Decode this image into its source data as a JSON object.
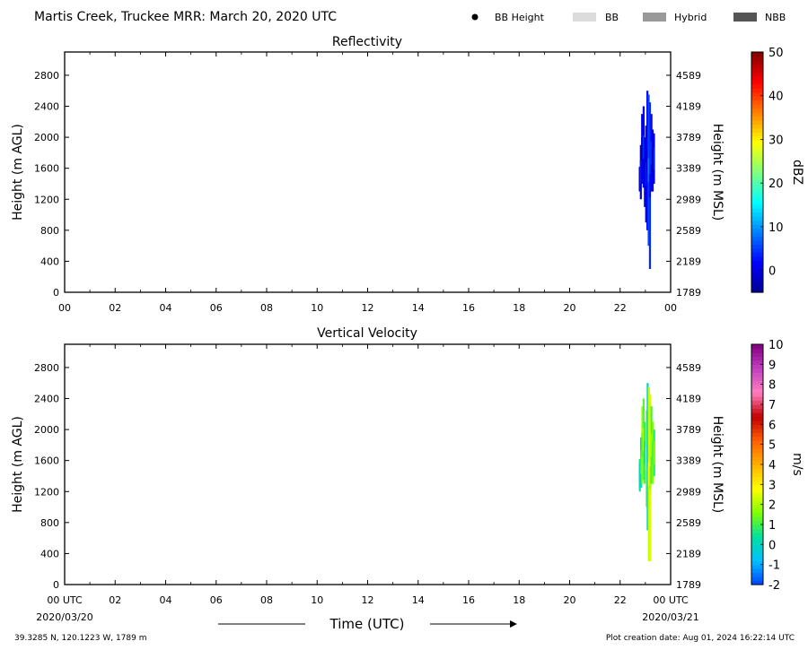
{
  "header": {
    "title": "Martis Creek, Truckee MRR:  March 20, 2020 UTC",
    "legend": [
      {
        "label": "BB Height",
        "color": "#000000",
        "marker": "dot"
      },
      {
        "label": "BB",
        "color": "#dcdcdc",
        "marker": "box"
      },
      {
        "label": "Hybrid",
        "color": "#999999",
        "marker": "box"
      },
      {
        "label": "NBB",
        "color": "#555555",
        "marker": "box"
      }
    ]
  },
  "chart_data": [
    {
      "type": "heatmap",
      "title": "Reflectivity",
      "xlabel": "",
      "ylabel": "Height (m AGL)",
      "y2label": "Height (m MSL)",
      "x_ticks": [
        "00",
        "02",
        "04",
        "06",
        "08",
        "10",
        "12",
        "14",
        "16",
        "18",
        "20",
        "22",
        "00"
      ],
      "xlim_hours": [
        0,
        24
      ],
      "ylim": [
        0,
        3100
      ],
      "y_ticks": [
        0,
        400,
        800,
        1200,
        1600,
        2000,
        2400,
        2800
      ],
      "y2_ticks": [
        1789,
        2189,
        2589,
        2989,
        3389,
        3789,
        4189,
        4589
      ],
      "colorbar": {
        "label": "dBZ",
        "range": [
          -5,
          50
        ],
        "ticks": [
          0,
          10,
          20,
          30,
          40,
          50
        ],
        "colors": [
          "#00008f",
          "#0000ff",
          "#0080ff",
          "#00ffff",
          "#80ff80",
          "#ffff00",
          "#ff8000",
          "#ff0000",
          "#800000"
        ]
      },
      "data": {
        "x_start_hour": 22.75,
        "x_end_hour": 23.45,
        "columns": [
          {
            "h": 22.78,
            "bot": 1300,
            "top": 1620,
            "v": 0
          },
          {
            "h": 22.82,
            "bot": 1200,
            "top": 1900,
            "v": 0
          },
          {
            "h": 22.87,
            "bot": 1400,
            "top": 2300,
            "v": 0
          },
          {
            "h": 22.93,
            "bot": 1350,
            "top": 2400,
            "v": 1
          },
          {
            "h": 22.98,
            "bot": 1100,
            "top": 2000,
            "v": 0
          },
          {
            "h": 23.03,
            "bot": 900,
            "top": 2150,
            "v": 0
          },
          {
            "h": 23.08,
            "bot": 800,
            "top": 2600,
            "v": 2
          },
          {
            "h": 23.13,
            "bot": 600,
            "top": 2550,
            "v": 6
          },
          {
            "h": 23.18,
            "bot": 300,
            "top": 2450,
            "v": 4
          },
          {
            "h": 23.24,
            "bot": 1300,
            "top": 2300,
            "v": 1
          },
          {
            "h": 23.29,
            "bot": 1300,
            "top": 2100,
            "v": 0
          },
          {
            "h": 23.34,
            "bot": 1400,
            "top": 2050,
            "v": 0
          }
        ]
      }
    },
    {
      "type": "heatmap",
      "title": "Vertical Velocity",
      "xlabel": "Time (UTC)",
      "ylabel": "Height (m AGL)",
      "y2label": "Height (m MSL)",
      "x_ticks": [
        "00 UTC",
        "02",
        "04",
        "06",
        "08",
        "10",
        "12",
        "14",
        "16",
        "18",
        "20",
        "22",
        "00 UTC"
      ],
      "x_date_labels": [
        "2020/03/20",
        "2020/03/21"
      ],
      "xlim_hours": [
        0,
        24
      ],
      "ylim": [
        0,
        3100
      ],
      "y_ticks": [
        0,
        400,
        800,
        1200,
        1600,
        2000,
        2400,
        2800
      ],
      "y2_ticks": [
        1789,
        2189,
        2589,
        2989,
        3389,
        3789,
        4189,
        4589
      ],
      "colorbar": {
        "label": "m/s",
        "range": [
          -2,
          10
        ],
        "ticks": [
          -2,
          -1,
          0,
          1,
          2,
          3,
          4,
          5,
          6,
          7,
          8,
          9,
          10
        ],
        "colors": [
          "#0040ff",
          "#00c0ff",
          "#00e0a0",
          "#80ff00",
          "#ffff00",
          "#ffb000",
          "#ff6000",
          "#c00000",
          "#ff80c0",
          "#c040c0",
          "#800080"
        ]
      },
      "data": {
        "x_start_hour": 22.75,
        "x_end_hour": 23.45,
        "columns": [
          {
            "h": 22.78,
            "bot": 1200,
            "top": 1620,
            "v": 0.5
          },
          {
            "h": 22.83,
            "bot": 1250,
            "top": 1900,
            "v": 0.3
          },
          {
            "h": 22.88,
            "bot": 1300,
            "top": 2300,
            "v": 1.8
          },
          {
            "h": 22.93,
            "bot": 1350,
            "top": 2400,
            "v": 1.2
          },
          {
            "h": 22.98,
            "bot": 1300,
            "top": 2100,
            "v": 0.8
          },
          {
            "h": 23.04,
            "bot": 1000,
            "top": 2250,
            "v": 2.0
          },
          {
            "h": 23.09,
            "bot": 700,
            "top": 2600,
            "v": -0.2
          },
          {
            "h": 23.14,
            "bot": 300,
            "top": 2550,
            "v": 2.2
          },
          {
            "h": 23.19,
            "bot": 300,
            "top": 2450,
            "v": 2.5
          },
          {
            "h": 23.24,
            "bot": 1300,
            "top": 2300,
            "v": 1.0
          },
          {
            "h": 23.3,
            "bot": 1300,
            "top": 2100,
            "v": 1.6
          },
          {
            "h": 23.35,
            "bot": 1400,
            "top": 2000,
            "v": 0.8
          }
        ]
      }
    }
  ],
  "footer": {
    "coords": "39.3285 N, 120.1223 W, 1789 m",
    "creation": "Plot creation date: Aug 01, 2024 16:22:14 UTC"
  }
}
